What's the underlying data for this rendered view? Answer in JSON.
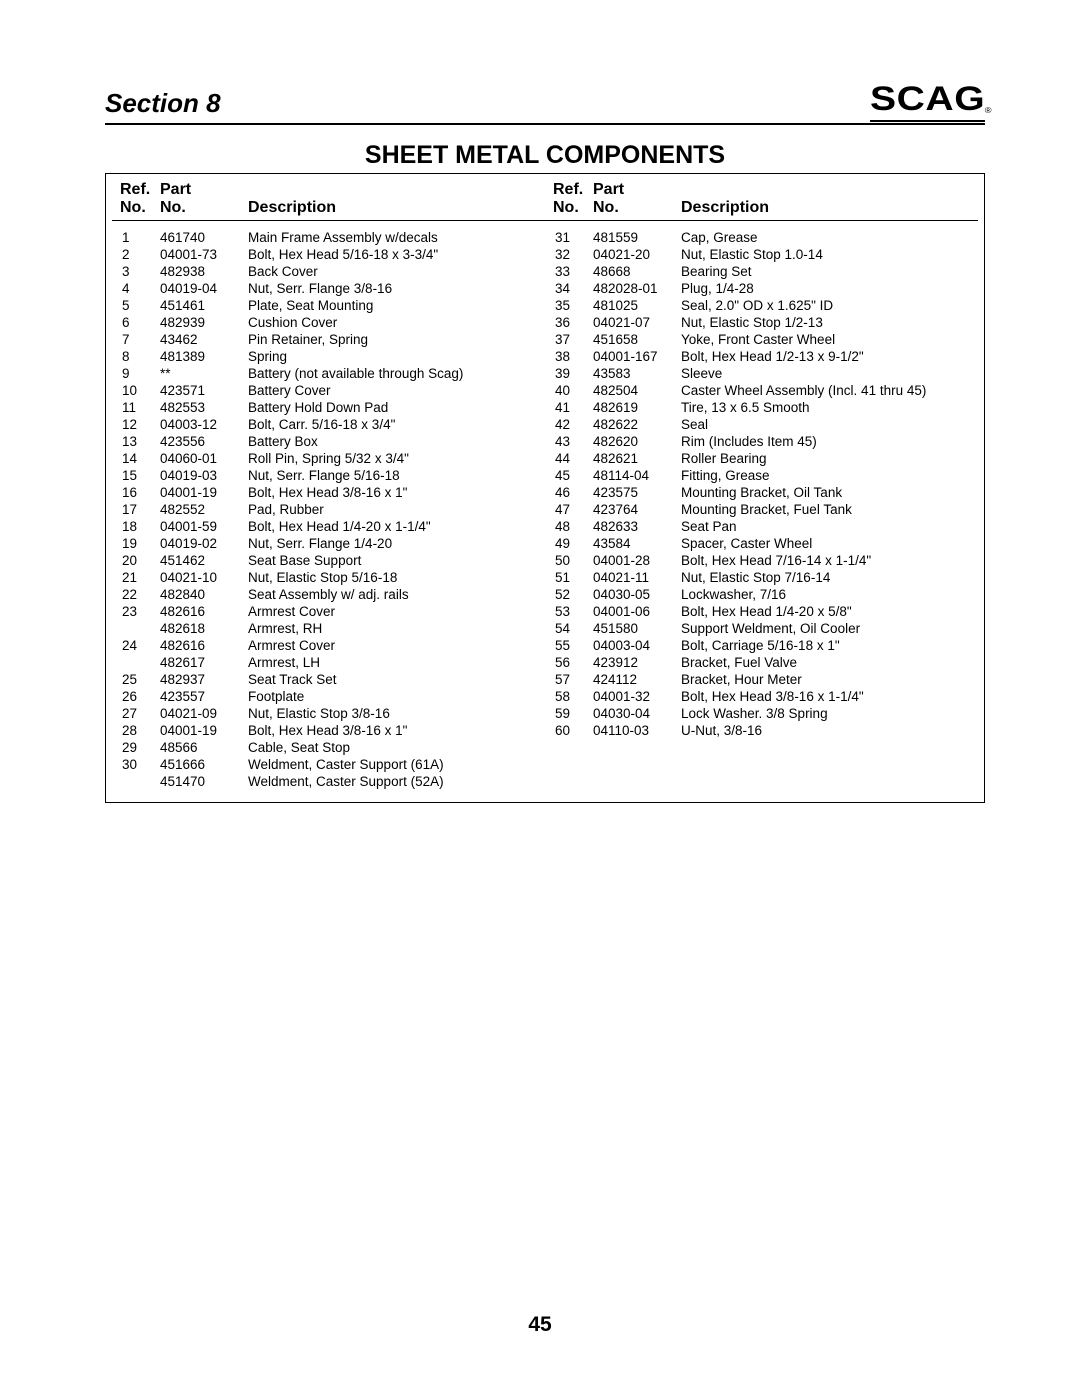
{
  "header": {
    "section_label": "Section 8",
    "logo_text": "SCAG",
    "logo_reg": "®"
  },
  "title": "SHEET  METAL  COMPONENTS",
  "col_headers": {
    "ref_line1": "Ref.",
    "ref_line2": "No.",
    "part_line1": "Part",
    "part_line2": "No.",
    "desc": "Description"
  },
  "left_rows": [
    {
      "ref": "1",
      "part": "461740",
      "desc": "Main Frame Assembly w/decals"
    },
    {
      "ref": "2",
      "part": "04001-73",
      "desc": "Bolt, Hex Head 5/16-18 x 3-3/4\""
    },
    {
      "ref": "3",
      "part": "482938",
      "desc": "Back Cover"
    },
    {
      "ref": "4",
      "part": "04019-04",
      "desc": "Nut, Serr. Flange 3/8-16"
    },
    {
      "ref": "5",
      "part": "451461",
      "desc": "Plate, Seat Mounting"
    },
    {
      "ref": "6",
      "part": "482939",
      "desc": "Cushion Cover"
    },
    {
      "ref": "7",
      "part": "43462",
      "desc": "Pin Retainer, Spring"
    },
    {
      "ref": "8",
      "part": "481389",
      "desc": "Spring"
    },
    {
      "ref": "9",
      "part": "**",
      "desc": "Battery (not available through Scag)"
    },
    {
      "ref": "10",
      "part": "423571",
      "desc": "Battery Cover"
    },
    {
      "ref": "11",
      "part": "482553",
      "desc": "Battery Hold Down Pad"
    },
    {
      "ref": "12",
      "part": "04003-12",
      "desc": "Bolt, Carr. 5/16-18 x 3/4\""
    },
    {
      "ref": "13",
      "part": "423556",
      "desc": "Battery Box"
    },
    {
      "ref": "14",
      "part": "04060-01",
      "desc": "Roll Pin, Spring 5/32 x 3/4\""
    },
    {
      "ref": "15",
      "part": "04019-03",
      "desc": "Nut, Serr. Flange 5/16-18"
    },
    {
      "ref": "16",
      "part": "04001-19",
      "desc": "Bolt, Hex Head 3/8-16 x 1\""
    },
    {
      "ref": "17",
      "part": "482552",
      "desc": "Pad, Rubber"
    },
    {
      "ref": "18",
      "part": "04001-59",
      "desc": "Bolt, Hex Head 1/4-20 x 1-1/4\""
    },
    {
      "ref": "19",
      "part": "04019-02",
      "desc": "Nut, Serr. Flange 1/4-20"
    },
    {
      "ref": "20",
      "part": "451462",
      "desc": "Seat Base Support"
    },
    {
      "ref": "21",
      "part": "04021-10",
      "desc": "Nut, Elastic Stop 5/16-18"
    },
    {
      "ref": "22",
      "part": "482840",
      "desc": "Seat Assembly w/ adj. rails"
    },
    {
      "ref": "23",
      "part": "482616",
      "desc": "Armrest Cover"
    },
    {
      "ref": "",
      "part": "482618",
      "desc": "Armrest, RH"
    },
    {
      "ref": "24",
      "part": "482616",
      "desc": "Armrest Cover"
    },
    {
      "ref": "",
      "part": "482617",
      "desc": "Armrest, LH"
    },
    {
      "ref": "25",
      "part": "482937",
      "desc": "Seat Track Set"
    },
    {
      "ref": "26",
      "part": "423557",
      "desc": "Footplate"
    },
    {
      "ref": "27",
      "part": "04021-09",
      "desc": "Nut, Elastic Stop 3/8-16"
    },
    {
      "ref": "28",
      "part": "04001-19",
      "desc": "Bolt, Hex Head 3/8-16 x 1\""
    },
    {
      "ref": "29",
      "part": "48566",
      "desc": "Cable, Seat Stop"
    },
    {
      "ref": "30",
      "part": "451666",
      "desc": "Weldment, Caster Support (61A)"
    },
    {
      "ref": "",
      "part": "451470",
      "desc": "Weldment, Caster Support (52A)"
    }
  ],
  "right_rows": [
    {
      "ref": "31",
      "part": "481559",
      "desc": "Cap, Grease"
    },
    {
      "ref": "32",
      "part": "04021-20",
      "desc": "Nut, Elastic Stop 1.0-14"
    },
    {
      "ref": "33",
      "part": "48668",
      "desc": "Bearing Set"
    },
    {
      "ref": "34",
      "part": "482028-01",
      "desc": "Plug, 1/4-28"
    },
    {
      "ref": "35",
      "part": "481025",
      "desc": "Seal, 2.0\" OD x 1.625\" ID"
    },
    {
      "ref": "36",
      "part": "04021-07",
      "desc": "Nut, Elastic Stop 1/2-13"
    },
    {
      "ref": "37",
      "part": "451658",
      "desc": "Yoke, Front Caster Wheel"
    },
    {
      "ref": "38",
      "part": "04001-167",
      "desc": "Bolt, Hex Head 1/2-13 x 9-1/2\""
    },
    {
      "ref": "39",
      "part": "43583",
      "desc": "Sleeve"
    },
    {
      "ref": "40",
      "part": "482504",
      "desc": "Caster Wheel Assembly (Incl. 41 thru 45)"
    },
    {
      "ref": "41",
      "part": "482619",
      "desc": "Tire, 13 x 6.5 Smooth"
    },
    {
      "ref": "42",
      "part": "482622",
      "desc": "Seal"
    },
    {
      "ref": "43",
      "part": "482620",
      "desc": "Rim (Includes Item 45)"
    },
    {
      "ref": "44",
      "part": "482621",
      "desc": "Roller Bearing"
    },
    {
      "ref": "45",
      "part": "48114-04",
      "desc": "Fitting, Grease"
    },
    {
      "ref": "46",
      "part": "423575",
      "desc": "Mounting Bracket, Oil Tank"
    },
    {
      "ref": "47",
      "part": "423764",
      "desc": "Mounting Bracket, Fuel Tank"
    },
    {
      "ref": "48",
      "part": "482633",
      "desc": "Seat Pan"
    },
    {
      "ref": "49",
      "part": "43584",
      "desc": "Spacer, Caster Wheel"
    },
    {
      "ref": "50",
      "part": "04001-28",
      "desc": "Bolt, Hex Head 7/16-14 x 1-1/4\""
    },
    {
      "ref": "51",
      "part": "04021-11",
      "desc": "Nut, Elastic Stop 7/16-14"
    },
    {
      "ref": "52",
      "part": "04030-05",
      "desc": "Lockwasher, 7/16"
    },
    {
      "ref": "53",
      "part": "04001-06",
      "desc": "Bolt, Hex Head 1/4-20 x 5/8\""
    },
    {
      "ref": "54",
      "part": "451580",
      "desc": "Support Weldment, Oil Cooler"
    },
    {
      "ref": "55",
      "part": "04003-04",
      "desc": "Bolt, Carriage 5/16-18 x 1\""
    },
    {
      "ref": "56",
      "part": "423912",
      "desc": "Bracket, Fuel Valve"
    },
    {
      "ref": "57",
      "part": "424112",
      "desc": "Bracket, Hour Meter"
    },
    {
      "ref": "58",
      "part": "04001-32",
      "desc": "Bolt, Hex Head 3/8-16 x 1-1/4\""
    },
    {
      "ref": "59",
      "part": "04030-04",
      "desc": "Lock Washer. 3/8 Spring"
    },
    {
      "ref": "60",
      "part": "04110-03",
      "desc": "U-Nut, 3/8-16"
    }
  ],
  "page_number": "45"
}
